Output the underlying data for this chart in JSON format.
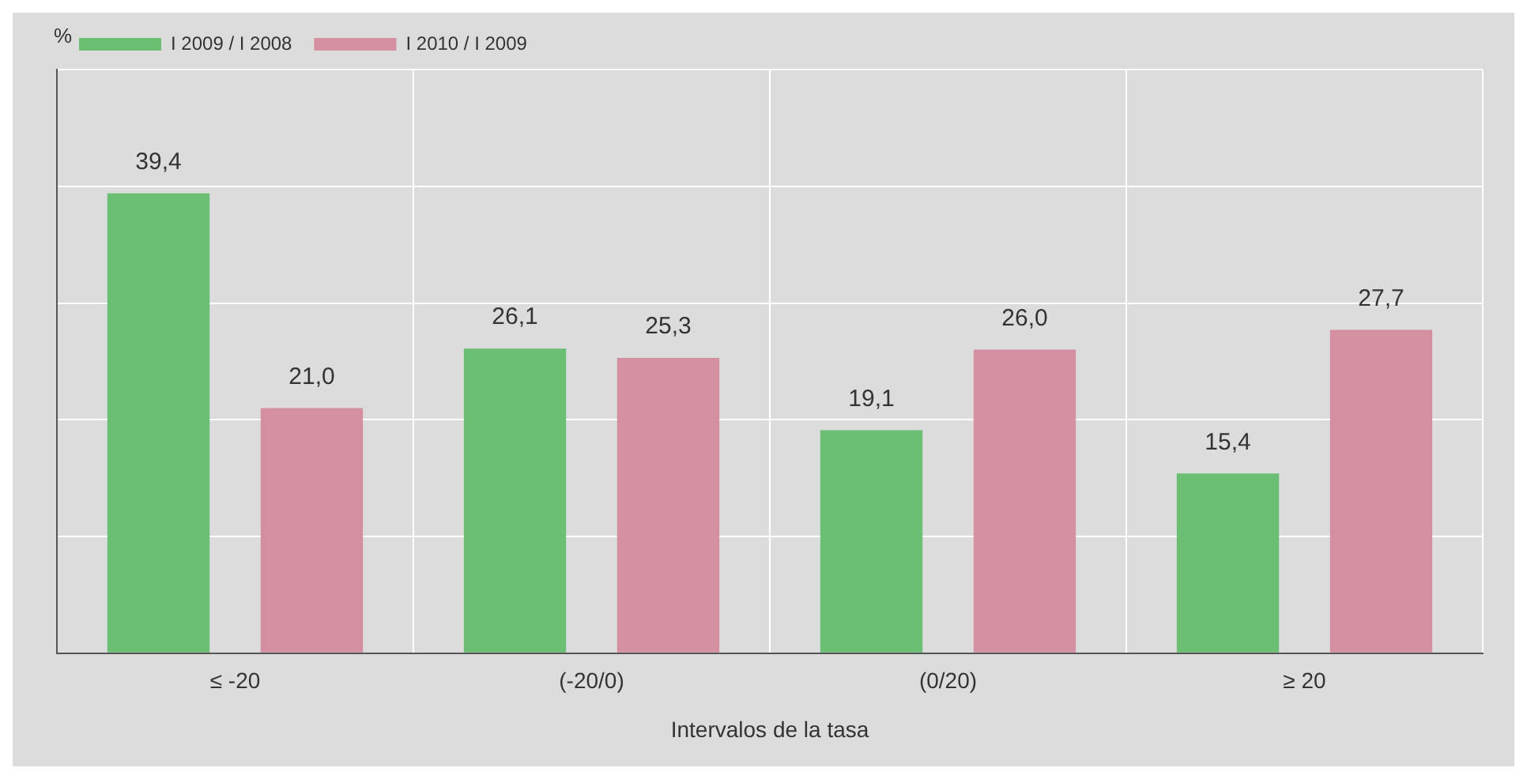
{
  "chart_data": {
    "type": "bar",
    "xlabel": "Intervalos de la tasa",
    "ylabel": "%",
    "categories": [
      "≤ -20",
      "(-20/0)",
      "(0/20)",
      "≥ 20"
    ],
    "series": [
      {
        "name": "I 2009 / I 2008",
        "color": "#6bbf73",
        "values": [
          39.4,
          26.1,
          19.1,
          15.4
        ],
        "value_labels": [
          "39,4",
          "26,1",
          "19,1",
          "15,4"
        ]
      },
      {
        "name": "I 2010 / I 2009",
        "color": "#d490a1",
        "values": [
          21.0,
          25.3,
          26.0,
          27.7
        ],
        "value_labels": [
          "21,0",
          "25,3",
          "26,0",
          "27,7"
        ]
      }
    ],
    "ylim": [
      0,
      50
    ],
    "yticks": [
      {
        "value": 0,
        "label": null
      },
      {
        "value": 10,
        "label": null
      },
      {
        "value": 20,
        "label": null
      },
      {
        "value": 30,
        "label": null
      },
      {
        "value": 40,
        "label": null
      },
      {
        "value": 50,
        "label": null
      }
    ],
    "tick_labels": "x",
    "grid": true,
    "legend": "top left"
  }
}
